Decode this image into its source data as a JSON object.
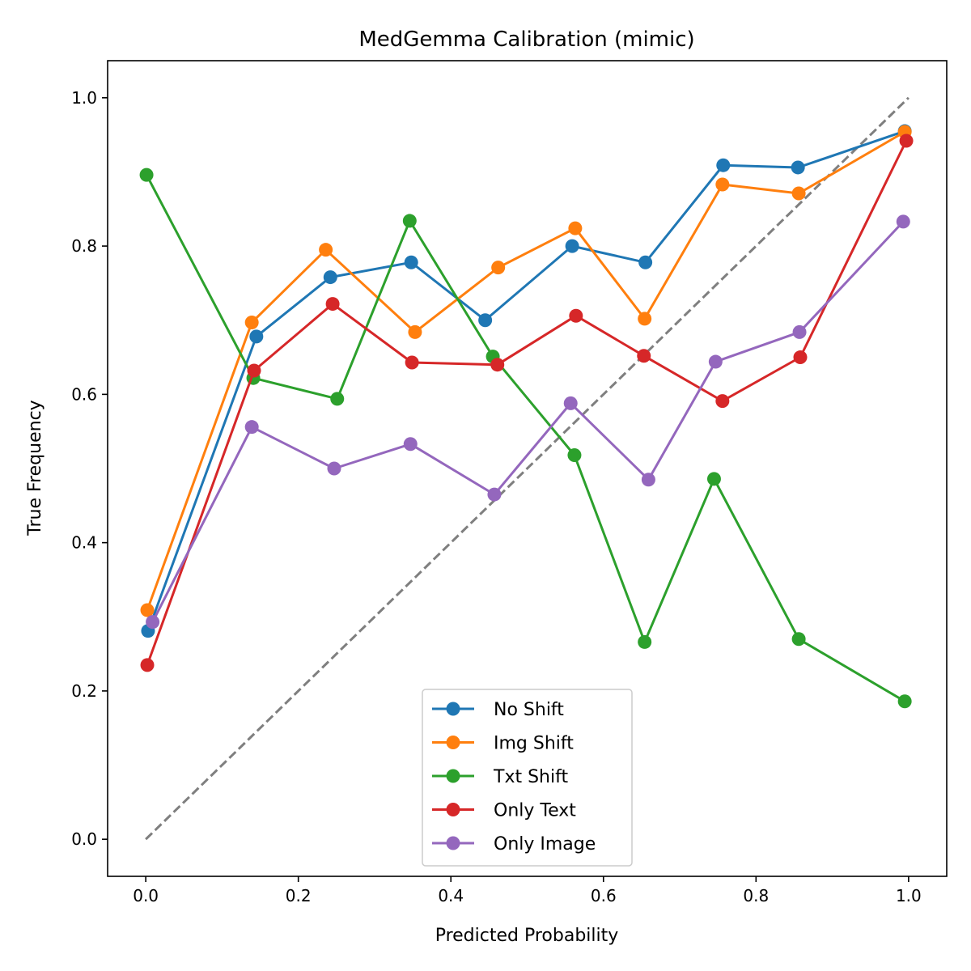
{
  "chart_data": {
    "type": "line",
    "title": "MedGemma Calibration (mimic)",
    "xlabel": "Predicted Probability",
    "ylabel": "True Frequency",
    "xlim": [
      -0.05,
      1.05
    ],
    "ylim": [
      -0.05,
      1.05
    ],
    "xticks": [
      "0.0",
      "0.2",
      "0.4",
      "0.6",
      "0.8",
      "1.0"
    ],
    "yticks": [
      "0.0",
      "0.2",
      "0.4",
      "0.6",
      "0.8",
      "1.0"
    ],
    "grid": false,
    "legend_position": "lower center",
    "reference_line": {
      "x": [
        0,
        1
      ],
      "y": [
        0,
        1
      ],
      "style": "dashed",
      "color": "#7f7f7f"
    },
    "series": [
      {
        "name": "No Shift",
        "color": "#1f77b4",
        "x": [
          0.003,
          0.145,
          0.242,
          0.348,
          0.445,
          0.559,
          0.655,
          0.757,
          0.855,
          0.995
        ],
        "y": [
          0.281,
          0.678,
          0.758,
          0.778,
          0.7,
          0.8,
          0.778,
          0.909,
          0.906,
          0.955
        ]
      },
      {
        "name": "Img Shift",
        "color": "#ff7f0e",
        "x": [
          0.002,
          0.139,
          0.236,
          0.353,
          0.462,
          0.563,
          0.654,
          0.756,
          0.856,
          0.995
        ],
        "y": [
          0.309,
          0.697,
          0.795,
          0.684,
          0.771,
          0.824,
          0.702,
          0.883,
          0.871,
          0.954
        ]
      },
      {
        "name": "Txt Shift",
        "color": "#2ca02c",
        "x": [
          0.001,
          0.141,
          0.251,
          0.346,
          0.455,
          0.562,
          0.654,
          0.745,
          0.856,
          0.995
        ],
        "y": [
          0.896,
          0.622,
          0.594,
          0.834,
          0.651,
          0.518,
          0.266,
          0.486,
          0.27,
          0.186
        ]
      },
      {
        "name": "Only Text",
        "color": "#d62728",
        "x": [
          0.002,
          0.142,
          0.245,
          0.349,
          0.461,
          0.564,
          0.653,
          0.756,
          0.858,
          0.997
        ],
        "y": [
          0.235,
          0.632,
          0.722,
          0.643,
          0.64,
          0.706,
          0.652,
          0.591,
          0.65,
          0.942
        ]
      },
      {
        "name": "Only Image",
        "color": "#9467bd",
        "x": [
          0.009,
          0.139,
          0.247,
          0.347,
          0.457,
          0.557,
          0.659,
          0.747,
          0.857,
          0.993
        ],
        "y": [
          0.293,
          0.556,
          0.5,
          0.533,
          0.465,
          0.588,
          0.485,
          0.644,
          0.684,
          0.833
        ]
      }
    ]
  }
}
